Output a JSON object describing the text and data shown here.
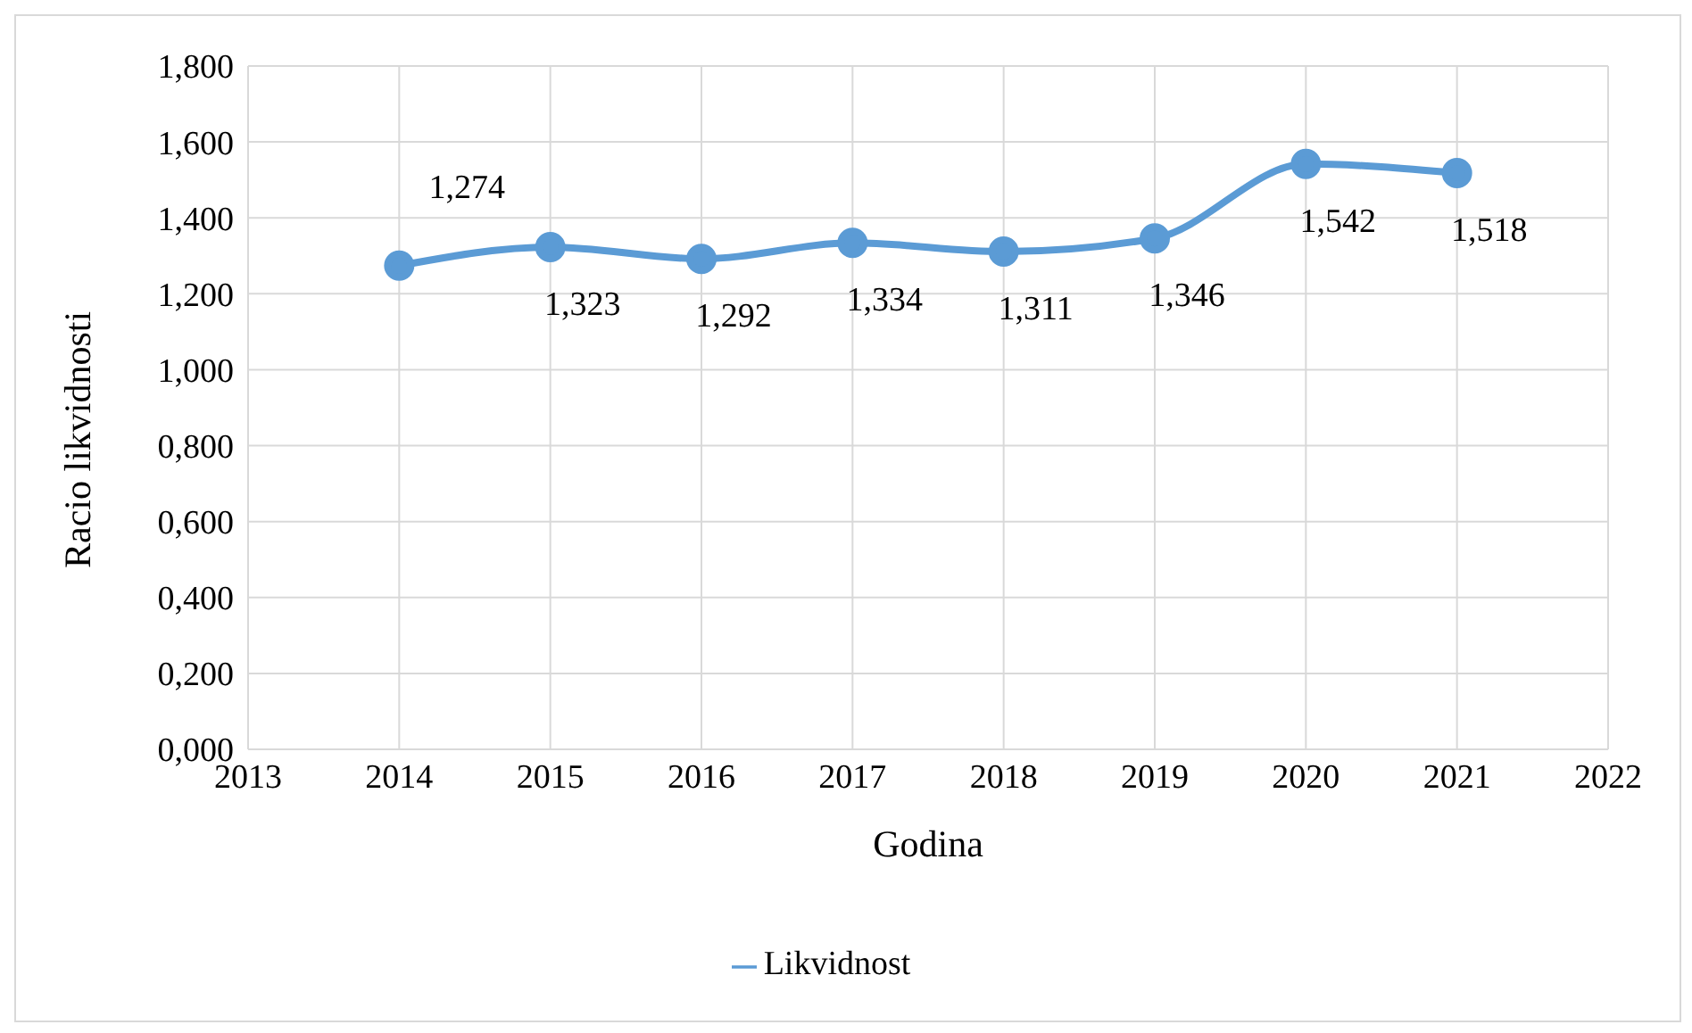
{
  "chart_data": {
    "type": "line",
    "xlabel": "Godina",
    "ylabel": "Racio likvidnosti",
    "x": [
      2014,
      2015,
      2016,
      2017,
      2018,
      2019,
      2020,
      2021
    ],
    "series": [
      {
        "name": "Likvidnost",
        "color": "#5b9bd5",
        "values": [
          1.274,
          1.323,
          1.292,
          1.334,
          1.311,
          1.346,
          1.542,
          1.518
        ],
        "value_labels": [
          "1,274",
          "1,323",
          "1,292",
          "1,334",
          "1,311",
          "1,346",
          "1,542",
          "1,518"
        ]
      }
    ],
    "xlim": [
      2013,
      2022
    ],
    "xticks": [
      2013,
      2014,
      2015,
      2016,
      2017,
      2018,
      2019,
      2020,
      2021,
      2022
    ],
    "ylim": [
      0,
      1.8
    ],
    "yticks": [
      {
        "value": 0,
        "label": "0,000"
      },
      {
        "value": 0.2,
        "label": "0,200"
      },
      {
        "value": 0.4,
        "label": "0,400"
      },
      {
        "value": 0.6,
        "label": "0,600"
      },
      {
        "value": 0.8,
        "label": "0,800"
      },
      {
        "value": 1,
        "label": "1,000"
      },
      {
        "value": 1.2,
        "label": "1,200"
      },
      {
        "value": 1.4,
        "label": "1,400"
      },
      {
        "value": 1.6,
        "label": "1,600"
      },
      {
        "value": 1.8,
        "label": "1,800"
      }
    ],
    "grid": true,
    "legend": "bottom",
    "marker": "circle",
    "line_style": "solid"
  }
}
